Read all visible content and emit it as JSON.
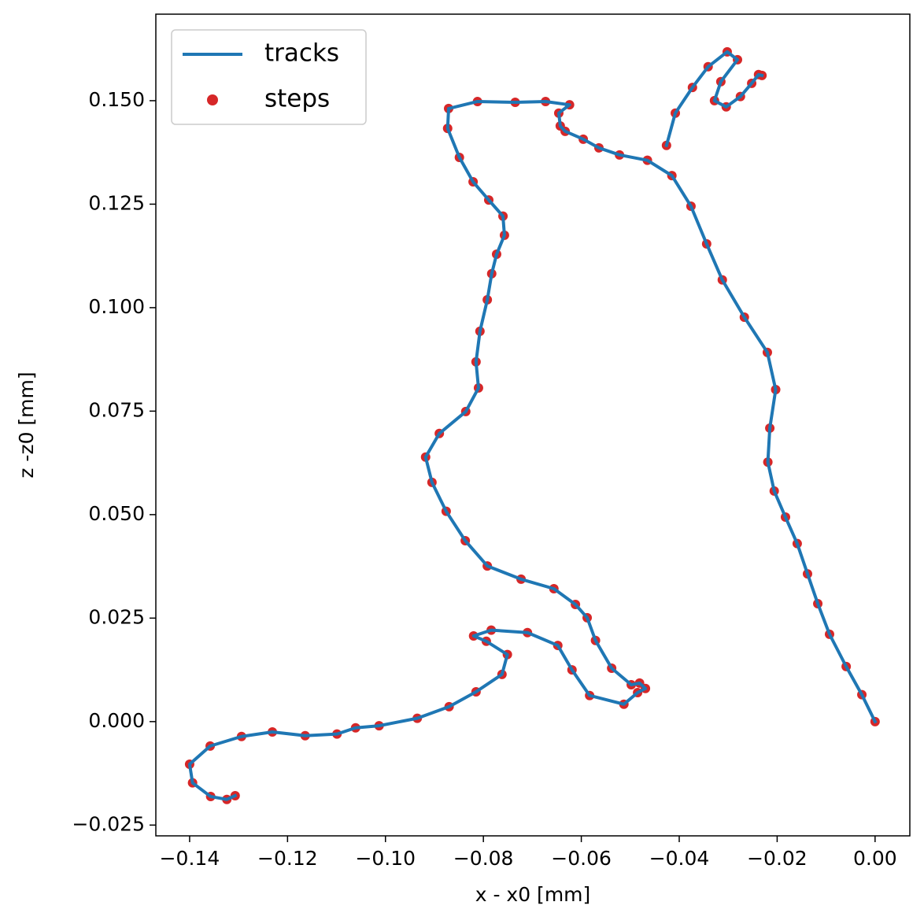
{
  "chart_data": {
    "type": "line",
    "xlabel": "x - x0 [mm]",
    "ylabel": "z -z0 [mm]",
    "x": [
      0,
      -0.0027,
      -0.0059,
      -0.0093,
      -0.0117,
      -0.0138,
      -0.0159,
      -0.0183,
      -0.0206,
      -0.0219,
      -0.0215,
      -0.0203,
      -0.022,
      -0.0267,
      -0.0312,
      -0.0344,
      -0.0376,
      -0.0415,
      -0.0465,
      -0.0522,
      -0.0564,
      -0.0596,
      -0.0633,
      -0.0643,
      -0.0646,
      -0.0624,
      -0.0673,
      -0.0735,
      -0.0812,
      -0.0871,
      -0.0873,
      -0.0849,
      -0.0821,
      -0.0789,
      -0.076,
      -0.0757,
      -0.0773,
      -0.0783,
      -0.0792,
      -0.0807,
      -0.0815,
      -0.081,
      -0.0836,
      -0.089,
      -0.0918,
      -0.0905,
      -0.0876,
      -0.0837,
      -0.0792,
      -0.0723,
      -0.0656,
      -0.0612,
      -0.0588,
      -0.0571,
      -0.0538,
      -0.0498,
      -0.0481,
      -0.0469,
      -0.0485,
      -0.0513,
      -0.0583,
      -0.0619,
      -0.0648,
      -0.071,
      -0.0784,
      -0.082,
      -0.0794,
      -0.0751,
      -0.0762,
      -0.0815,
      -0.087,
      -0.0935,
      -0.1013,
      -0.1061,
      -0.1099,
      -0.1164,
      -0.1231,
      -0.1294,
      -0.1358,
      -0.14,
      -0.1394,
      -0.1357,
      -0.1324,
      -0.1307,
      null,
      -0.0426,
      -0.0408,
      -0.0373,
      -0.0341,
      -0.0302,
      -0.0281,
      -0.0315,
      -0.0328,
      -0.0304,
      -0.0275,
      -0.0252,
      -0.0238,
      -0.0231
    ],
    "series": [
      {
        "name": "tracks",
        "color": "#1f77b4",
        "values": [
          0,
          0.0065,
          0.0133,
          0.0211,
          0.0285,
          0.0357,
          0.043,
          0.0494,
          0.0557,
          0.0627,
          0.0709,
          0.0802,
          0.0892,
          0.0977,
          0.1067,
          0.1154,
          0.1245,
          0.1319,
          0.1356,
          0.1369,
          0.1386,
          0.1407,
          0.1426,
          0.1439,
          0.147,
          0.149,
          0.1498,
          0.1496,
          0.1498,
          0.1481,
          0.1433,
          0.1363,
          0.1304,
          0.126,
          0.1221,
          0.1175,
          0.1129,
          0.1082,
          0.1019,
          0.0943,
          0.0869,
          0.0806,
          0.0749,
          0.0696,
          0.0639,
          0.0578,
          0.0508,
          0.0437,
          0.0376,
          0.0344,
          0.0321,
          0.0283,
          0.0251,
          0.0196,
          0.0129,
          0.0089,
          0.0093,
          0.008,
          0.007,
          0.0042,
          0.0063,
          0.0125,
          0.0184,
          0.0215,
          0.0221,
          0.0207,
          0.0194,
          0.0162,
          0.0114,
          0.0072,
          0.0036,
          0.0008,
          -0.001,
          -0.0015,
          -0.003,
          -0.0034,
          -0.0025,
          -0.0036,
          -0.0059,
          -0.0103,
          -0.0148,
          -0.0181,
          -0.0188,
          -0.0179,
          null,
          0.1392,
          0.147,
          0.1532,
          0.1582,
          0.1618,
          0.1599,
          0.1546,
          0.15,
          0.1485,
          0.151,
          0.1542,
          0.1563,
          0.1561
        ]
      },
      {
        "name": "steps",
        "type": "scatter",
        "color": "#d62728",
        "values": [
          0,
          0.0065,
          0.0133,
          0.0211,
          0.0285,
          0.0357,
          0.043,
          0.0494,
          0.0557,
          0.0627,
          0.0709,
          0.0802,
          0.0892,
          0.0977,
          0.1067,
          0.1154,
          0.1245,
          0.1319,
          0.1356,
          0.1369,
          0.1386,
          0.1407,
          0.1426,
          0.1439,
          0.147,
          0.149,
          0.1498,
          0.1496,
          0.1498,
          0.1481,
          0.1433,
          0.1363,
          0.1304,
          0.126,
          0.1221,
          0.1175,
          0.1129,
          0.1082,
          0.1019,
          0.0943,
          0.0869,
          0.0806,
          0.0749,
          0.0696,
          0.0639,
          0.0578,
          0.0508,
          0.0437,
          0.0376,
          0.0344,
          0.0321,
          0.0283,
          0.0251,
          0.0196,
          0.0129,
          0.0089,
          0.0093,
          0.008,
          0.007,
          0.0042,
          0.0063,
          0.0125,
          0.0184,
          0.0215,
          0.0221,
          0.0207,
          0.0194,
          0.0162,
          0.0114,
          0.0072,
          0.0036,
          0.0008,
          -0.001,
          -0.0015,
          -0.003,
          -0.0034,
          -0.0025,
          -0.0036,
          -0.0059,
          -0.0103,
          -0.0148,
          -0.0181,
          -0.0188,
          -0.0179,
          null,
          0.1392,
          0.147,
          0.1532,
          0.1582,
          0.1618,
          0.1599,
          0.1546,
          0.15,
          0.1485,
          0.151,
          0.1542,
          0.1563,
          0.1561
        ]
      }
    ],
    "xlim": [
      -0.1469,
      0.0071
    ],
    "ylim": [
      -0.0276,
      0.1709
    ],
    "xticks": [
      {
        "value": -0.14,
        "label": "−0.14"
      },
      {
        "value": -0.12,
        "label": "−0.12"
      },
      {
        "value": -0.1,
        "label": "−0.10"
      },
      {
        "value": -0.08,
        "label": "−0.08"
      },
      {
        "value": -0.06,
        "label": "−0.06"
      },
      {
        "value": -0.04,
        "label": "−0.04"
      },
      {
        "value": -0.02,
        "label": "−0.02"
      },
      {
        "value": 0,
        "label": "0.00"
      }
    ],
    "yticks": [
      {
        "value": -0.025,
        "label": "−0.025"
      },
      {
        "value": 0,
        "label": "0.000"
      },
      {
        "value": 0.025,
        "label": "0.025"
      },
      {
        "value": 0.05,
        "label": "0.050"
      },
      {
        "value": 0.075,
        "label": "0.075"
      },
      {
        "value": 0.1,
        "label": "0.100"
      },
      {
        "value": 0.125,
        "label": "0.125"
      },
      {
        "value": 0.15,
        "label": "0.150"
      }
    ],
    "grid": false,
    "legend": "upper left"
  }
}
